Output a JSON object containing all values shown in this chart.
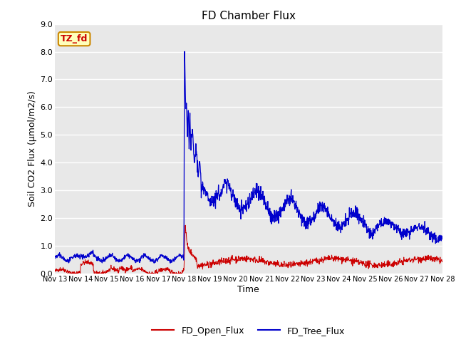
{
  "title": "FD Chamber Flux",
  "xlabel": "Time",
  "ylabel": "Soil CO2 Flux (μmol/m2/s)",
  "ylim": [
    0.0,
    9.0
  ],
  "yticks": [
    0.0,
    1.0,
    2.0,
    3.0,
    4.0,
    5.0,
    6.0,
    7.0,
    8.0,
    9.0
  ],
  "xtick_labels": [
    "Nov 13",
    "Nov 14",
    "Nov 15",
    "Nov 16",
    "Nov 17",
    "Nov 18",
    "Nov 19",
    "Nov 20",
    "Nov 21",
    "Nov 22",
    "Nov 23",
    "Nov 24",
    "Nov 25",
    "Nov 26",
    "Nov 27",
    "Nov 28"
  ],
  "open_flux_color": "#cc0000",
  "tree_flux_color": "#0000cc",
  "fig_bg_color": "#ffffff",
  "plot_bg_color": "#e8e8e8",
  "grid_color": "#ffffff",
  "annotation_text": "TZ_fd",
  "annotation_bg": "#ffffbb",
  "annotation_border": "#cc8800",
  "annotation_text_color": "#cc0000",
  "legend_labels": [
    "FD_Open_Flux",
    "FD_Tree_Flux"
  ],
  "n_days": 15,
  "points_per_day": 96,
  "title_fontsize": 11,
  "label_fontsize": 9,
  "tick_fontsize": 8
}
